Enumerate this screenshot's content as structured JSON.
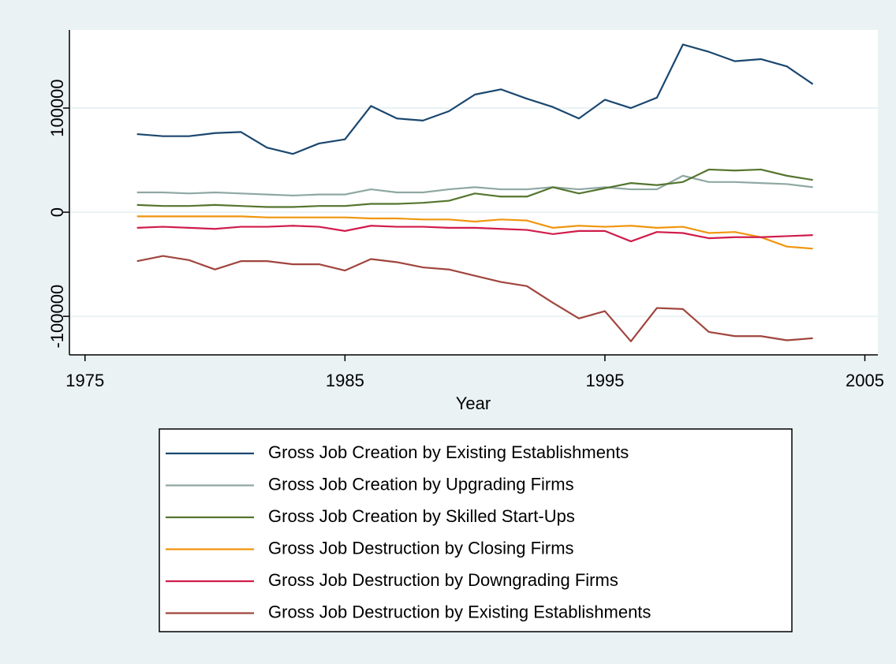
{
  "chart_data": {
    "type": "line",
    "x_label": "Year",
    "x": [
      1977,
      1978,
      1979,
      1980,
      1981,
      1982,
      1983,
      1984,
      1985,
      1986,
      1987,
      1988,
      1989,
      1990,
      1991,
      1992,
      1993,
      1994,
      1995,
      1996,
      1997,
      1998,
      1999,
      2000,
      2001,
      2002,
      2003
    ],
    "series": [
      {
        "name": "Gross Job Creation by Existing Establishments",
        "color": "#1a476f",
        "values": [
          75000,
          73000,
          73000,
          76000,
          77000,
          62000,
          56000,
          66000,
          70000,
          102000,
          90000,
          88000,
          97000,
          113000,
          118000,
          109000,
          101000,
          90000,
          108000,
          100000,
          110000,
          161000,
          154000,
          145000,
          147000,
          140000,
          123000
        ]
      },
      {
        "name": "Gross Job Creation by Upgrading Firms",
        "color": "#8fa8a3",
        "values": [
          19000,
          19000,
          18000,
          19000,
          18000,
          17000,
          16000,
          17000,
          17000,
          22000,
          19000,
          19000,
          22000,
          24000,
          22000,
          22000,
          24000,
          22000,
          24000,
          22000,
          22000,
          35000,
          29000,
          29000,
          28000,
          27000,
          24000
        ]
      },
      {
        "name": "Gross Job Creation by Skilled Start-Ups",
        "color": "#55752f",
        "values": [
          7000,
          6000,
          6000,
          7000,
          6000,
          5000,
          5000,
          6000,
          6000,
          8000,
          8000,
          9000,
          11000,
          18000,
          15000,
          15000,
          24000,
          18000,
          23000,
          28000,
          26000,
          29000,
          41000,
          40000,
          41000,
          35000,
          31000
        ]
      },
      {
        "name": "Gross Job Destruction by Closing Firms",
        "color": "#f0960f",
        "values": [
          -4000,
          -4000,
          -4000,
          -4000,
          -4000,
          -5000,
          -5000,
          -5000,
          -5000,
          -6000,
          -6000,
          -7000,
          -7000,
          -9000,
          -7000,
          -8000,
          -15000,
          -13000,
          -14000,
          -13000,
          -15000,
          -14000,
          -20000,
          -19000,
          -24000,
          -33000,
          -35000
        ]
      },
      {
        "name": "Gross Job Destruction by Downgrading Firms",
        "color": "#d01c4b",
        "values": [
          -15000,
          -14000,
          -15000,
          -16000,
          -14000,
          -14000,
          -13000,
          -14000,
          -18000,
          -13000,
          -14000,
          -14000,
          -15000,
          -15000,
          -16000,
          -17000,
          -21000,
          -18000,
          -18000,
          -28000,
          -19000,
          -20000,
          -25000,
          -24000,
          -24000,
          -23000,
          -22000
        ]
      },
      {
        "name": "Gross Job Destruction by Existing Establishments",
        "color": "#a0453e",
        "values": [
          -47000,
          -42000,
          -46000,
          -55000,
          -47000,
          -47000,
          -50000,
          -50000,
          -56000,
          -45000,
          -48000,
          -53000,
          -55000,
          -61000,
          -67000,
          -71000,
          -87000,
          -102000,
          -95000,
          -124000,
          -92000,
          -93000,
          -115000,
          -119000,
          -119000,
          -123000,
          -121000
        ]
      }
    ],
    "xlim": [
      1974.4,
      2005.5
    ],
    "xticks": [
      1975,
      1985,
      1995,
      2005
    ],
    "ylim": [
      -137000,
      175000
    ],
    "yticks": [
      -100000,
      0,
      100000
    ],
    "grid": true,
    "legend": "bottom"
  }
}
